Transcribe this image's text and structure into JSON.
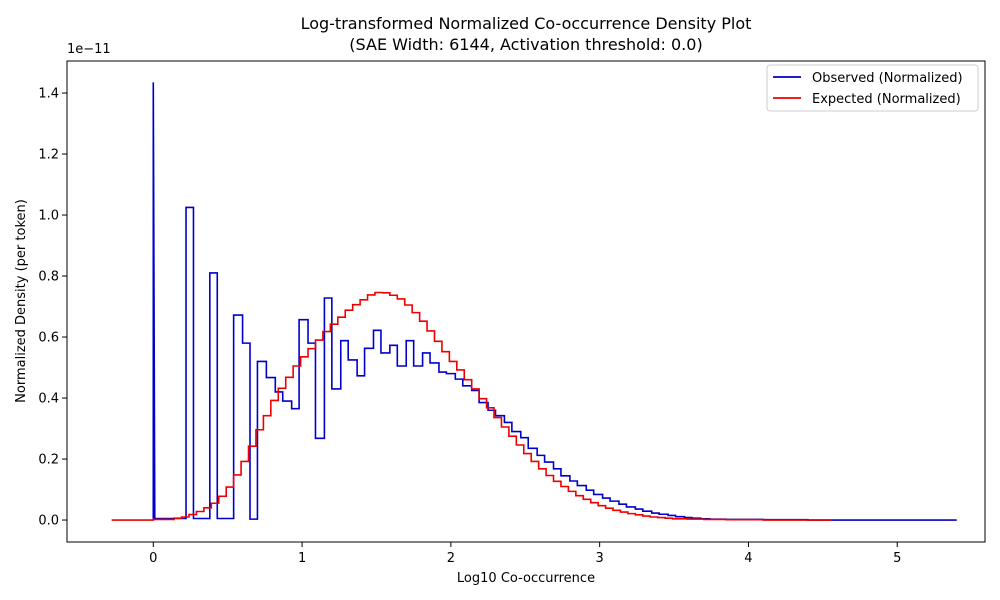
{
  "chart_data": {
    "type": "line",
    "title": "Log-transformed Normalized Co-occurrence Density Plot",
    "subtitle": "(SAE Width: 6144, Activation threshold: 0.0)",
    "xlabel": "Log10 Co-occurrence",
    "ylabel": "Normalized Density (per token)",
    "y_multiplier": "1e−11",
    "xlim": [
      -0.58,
      5.59
    ],
    "ylim": [
      -0.072,
      1.505
    ],
    "xticks": [
      0,
      1,
      2,
      3,
      4,
      5
    ],
    "xtick_labels": [
      "0",
      "1",
      "2",
      "3",
      "4",
      "5"
    ],
    "yticks": [
      0.0,
      0.2,
      0.4,
      0.6,
      0.8,
      1.0,
      1.2,
      1.4
    ],
    "ytick_labels": [
      "0.0",
      "0.2",
      "0.4",
      "0.6",
      "0.8",
      "1.0",
      "1.2",
      "1.4"
    ],
    "grid": false,
    "legend_position": "top-right",
    "drawstyle": "steps",
    "series": [
      {
        "name": "Observed (Normalized)",
        "color": "#0000cc",
        "points": [
          [
            0,
            0
          ],
          [
            0,
            1.435
          ],
          [
            0.01,
            0.005
          ],
          [
            0.22,
            0.005
          ],
          [
            0.22,
            1.025
          ],
          [
            0.27,
            1.025
          ],
          [
            0.27,
            0.005
          ],
          [
            0.38,
            0.005
          ],
          [
            0.38,
            0.81
          ],
          [
            0.43,
            0.81
          ],
          [
            0.43,
            0.005
          ],
          [
            0.54,
            0.005
          ],
          [
            0.54,
            0.672
          ],
          [
            0.6,
            0.672
          ],
          [
            0.6,
            0.58
          ],
          [
            0.65,
            0.58
          ],
          [
            0.65,
            0.003
          ],
          [
            0.7,
            0.003
          ],
          [
            0.7,
            0.52
          ],
          [
            0.76,
            0.52
          ],
          [
            0.76,
            0.467
          ],
          [
            0.82,
            0.467
          ],
          [
            0.82,
            0.42
          ],
          [
            0.87,
            0.42
          ],
          [
            0.87,
            0.39
          ],
          [
            0.93,
            0.39
          ],
          [
            0.93,
            0.365
          ],
          [
            0.98,
            0.365
          ],
          [
            0.98,
            0.657
          ],
          [
            1.04,
            0.657
          ],
          [
            1.04,
            0.58
          ],
          [
            1.09,
            0.58
          ],
          [
            1.09,
            0.268
          ],
          [
            1.15,
            0.268
          ],
          [
            1.15,
            0.728
          ],
          [
            1.2,
            0.728
          ],
          [
            1.2,
            0.43
          ],
          [
            1.26,
            0.43
          ],
          [
            1.26,
            0.588
          ],
          [
            1.31,
            0.588
          ],
          [
            1.31,
            0.525
          ],
          [
            1.37,
            0.525
          ],
          [
            1.37,
            0.473
          ],
          [
            1.42,
            0.473
          ],
          [
            1.42,
            0.563
          ],
          [
            1.48,
            0.563
          ],
          [
            1.48,
            0.622
          ],
          [
            1.53,
            0.622
          ],
          [
            1.53,
            0.548
          ],
          [
            1.59,
            0.548
          ],
          [
            1.59,
            0.573
          ],
          [
            1.64,
            0.573
          ],
          [
            1.64,
            0.505
          ],
          [
            1.7,
            0.505
          ],
          [
            1.7,
            0.588
          ],
          [
            1.75,
            0.588
          ],
          [
            1.75,
            0.505
          ],
          [
            1.81,
            0.505
          ],
          [
            1.81,
            0.548
          ],
          [
            1.86,
            0.548
          ],
          [
            1.86,
            0.515
          ],
          [
            1.92,
            0.515
          ],
          [
            1.92,
            0.485
          ],
          [
            1.97,
            0.485
          ],
          [
            1.97,
            0.48
          ],
          [
            2.03,
            0.48
          ],
          [
            2.03,
            0.462
          ],
          [
            2.08,
            0.462
          ],
          [
            2.08,
            0.44
          ],
          [
            2.14,
            0.44
          ],
          [
            2.14,
            0.425
          ],
          [
            2.19,
            0.425
          ],
          [
            2.19,
            0.385
          ],
          [
            2.25,
            0.385
          ],
          [
            2.25,
            0.36
          ],
          [
            2.3,
            0.36
          ],
          [
            2.3,
            0.342
          ],
          [
            2.36,
            0.342
          ],
          [
            2.36,
            0.32
          ],
          [
            2.41,
            0.32
          ],
          [
            2.41,
            0.29
          ],
          [
            2.47,
            0.29
          ],
          [
            2.47,
            0.27
          ],
          [
            2.52,
            0.27
          ],
          [
            2.52,
            0.235
          ],
          [
            2.58,
            0.235
          ],
          [
            2.58,
            0.212
          ],
          [
            2.63,
            0.212
          ],
          [
            2.63,
            0.19
          ],
          [
            2.69,
            0.19
          ],
          [
            2.69,
            0.168
          ],
          [
            2.74,
            0.168
          ],
          [
            2.74,
            0.145
          ],
          [
            2.8,
            0.145
          ],
          [
            2.8,
            0.128
          ],
          [
            2.85,
            0.128
          ],
          [
            2.85,
            0.113
          ],
          [
            2.91,
            0.113
          ],
          [
            2.91,
            0.098
          ],
          [
            2.96,
            0.098
          ],
          [
            2.96,
            0.084
          ],
          [
            3.02,
            0.084
          ],
          [
            3.02,
            0.072
          ],
          [
            3.07,
            0.072
          ],
          [
            3.07,
            0.062
          ],
          [
            3.13,
            0.062
          ],
          [
            3.13,
            0.052
          ],
          [
            3.18,
            0.052
          ],
          [
            3.18,
            0.043
          ],
          [
            3.24,
            0.043
          ],
          [
            3.24,
            0.036
          ],
          [
            3.29,
            0.036
          ],
          [
            3.29,
            0.029
          ],
          [
            3.35,
            0.029
          ],
          [
            3.35,
            0.023
          ],
          [
            3.4,
            0.023
          ],
          [
            3.4,
            0.019
          ],
          [
            3.46,
            0.019
          ],
          [
            3.46,
            0.015
          ],
          [
            3.51,
            0.015
          ],
          [
            3.51,
            0.011
          ],
          [
            3.57,
            0.011
          ],
          [
            3.57,
            0.008
          ],
          [
            3.62,
            0.008
          ],
          [
            3.62,
            0.006
          ],
          [
            3.68,
            0.006
          ],
          [
            3.68,
            0.004
          ],
          [
            3.74,
            0.004
          ],
          [
            3.74,
            0.003
          ],
          [
            3.85,
            0.003
          ],
          [
            3.85,
            0.002
          ],
          [
            4.1,
            0.002
          ],
          [
            4.1,
            0.001
          ],
          [
            4.4,
            0.001
          ],
          [
            4.4,
            0.0
          ],
          [
            5.4,
            0.0
          ]
        ]
      },
      {
        "name": "Expected (Normalized)",
        "color": "#ee0000",
        "points": [
          [
            -0.28,
            0.0
          ],
          [
            0.0,
            0.0
          ],
          [
            0.0,
            0.002
          ],
          [
            0.14,
            0.002
          ],
          [
            0.14,
            0.006
          ],
          [
            0.19,
            0.006
          ],
          [
            0.19,
            0.01
          ],
          [
            0.24,
            0.01
          ],
          [
            0.24,
            0.018
          ],
          [
            0.29,
            0.018
          ],
          [
            0.29,
            0.028
          ],
          [
            0.34,
            0.028
          ],
          [
            0.34,
            0.04
          ],
          [
            0.39,
            0.04
          ],
          [
            0.39,
            0.055
          ],
          [
            0.44,
            0.055
          ],
          [
            0.44,
            0.078
          ],
          [
            0.49,
            0.078
          ],
          [
            0.49,
            0.108
          ],
          [
            0.54,
            0.108
          ],
          [
            0.54,
            0.148
          ],
          [
            0.59,
            0.148
          ],
          [
            0.59,
            0.192
          ],
          [
            0.64,
            0.192
          ],
          [
            0.64,
            0.242
          ],
          [
            0.69,
            0.242
          ],
          [
            0.69,
            0.296
          ],
          [
            0.74,
            0.296
          ],
          [
            0.74,
            0.342
          ],
          [
            0.79,
            0.342
          ],
          [
            0.79,
            0.392
          ],
          [
            0.84,
            0.392
          ],
          [
            0.84,
            0.432
          ],
          [
            0.89,
            0.432
          ],
          [
            0.89,
            0.468
          ],
          [
            0.94,
            0.468
          ],
          [
            0.94,
            0.505
          ],
          [
            0.99,
            0.505
          ],
          [
            0.99,
            0.535
          ],
          [
            1.04,
            0.535
          ],
          [
            1.04,
            0.562
          ],
          [
            1.09,
            0.562
          ],
          [
            1.09,
            0.59
          ],
          [
            1.14,
            0.59
          ],
          [
            1.14,
            0.618
          ],
          [
            1.19,
            0.618
          ],
          [
            1.19,
            0.642
          ],
          [
            1.24,
            0.642
          ],
          [
            1.24,
            0.665
          ],
          [
            1.29,
            0.665
          ],
          [
            1.29,
            0.688
          ],
          [
            1.34,
            0.688
          ],
          [
            1.34,
            0.706
          ],
          [
            1.39,
            0.706
          ],
          [
            1.39,
            0.722
          ],
          [
            1.44,
            0.722
          ],
          [
            1.44,
            0.738
          ],
          [
            1.49,
            0.738
          ],
          [
            1.49,
            0.746
          ],
          [
            1.54,
            0.746
          ],
          [
            1.54,
            0.745
          ],
          [
            1.59,
            0.745
          ],
          [
            1.59,
            0.737
          ],
          [
            1.64,
            0.737
          ],
          [
            1.64,
            0.725
          ],
          [
            1.69,
            0.725
          ],
          [
            1.69,
            0.705
          ],
          [
            1.74,
            0.705
          ],
          [
            1.74,
            0.68
          ],
          [
            1.79,
            0.68
          ],
          [
            1.79,
            0.652
          ],
          [
            1.84,
            0.652
          ],
          [
            1.84,
            0.62
          ],
          [
            1.89,
            0.62
          ],
          [
            1.89,
            0.586
          ],
          [
            1.94,
            0.586
          ],
          [
            1.94,
            0.552
          ],
          [
            1.99,
            0.552
          ],
          [
            1.99,
            0.52
          ],
          [
            2.04,
            0.52
          ],
          [
            2.04,
            0.492
          ],
          [
            2.09,
            0.492
          ],
          [
            2.09,
            0.46
          ],
          [
            2.14,
            0.46
          ],
          [
            2.14,
            0.43
          ],
          [
            2.19,
            0.43
          ],
          [
            2.19,
            0.398
          ],
          [
            2.24,
            0.398
          ],
          [
            2.24,
            0.368
          ],
          [
            2.29,
            0.368
          ],
          [
            2.29,
            0.336
          ],
          [
            2.34,
            0.336
          ],
          [
            2.34,
            0.305
          ],
          [
            2.39,
            0.305
          ],
          [
            2.39,
            0.275
          ],
          [
            2.44,
            0.275
          ],
          [
            2.44,
            0.246
          ],
          [
            2.49,
            0.246
          ],
          [
            2.49,
            0.218
          ],
          [
            2.54,
            0.218
          ],
          [
            2.54,
            0.192
          ],
          [
            2.59,
            0.192
          ],
          [
            2.59,
            0.168
          ],
          [
            2.64,
            0.168
          ],
          [
            2.64,
            0.146
          ],
          [
            2.69,
            0.146
          ],
          [
            2.69,
            0.127
          ],
          [
            2.74,
            0.127
          ],
          [
            2.74,
            0.11
          ],
          [
            2.79,
            0.11
          ],
          [
            2.79,
            0.094
          ],
          [
            2.84,
            0.094
          ],
          [
            2.84,
            0.08
          ],
          [
            2.89,
            0.08
          ],
          [
            2.89,
            0.068
          ],
          [
            2.94,
            0.068
          ],
          [
            2.94,
            0.057
          ],
          [
            2.99,
            0.057
          ],
          [
            2.99,
            0.047
          ],
          [
            3.04,
            0.047
          ],
          [
            3.04,
            0.039
          ],
          [
            3.09,
            0.039
          ],
          [
            3.09,
            0.032
          ],
          [
            3.14,
            0.032
          ],
          [
            3.14,
            0.026
          ],
          [
            3.19,
            0.026
          ],
          [
            3.19,
            0.021
          ],
          [
            3.24,
            0.021
          ],
          [
            3.24,
            0.017
          ],
          [
            3.29,
            0.017
          ],
          [
            3.29,
            0.013
          ],
          [
            3.34,
            0.013
          ],
          [
            3.34,
            0.01
          ],
          [
            3.39,
            0.01
          ],
          [
            3.39,
            0.008
          ],
          [
            3.44,
            0.008
          ],
          [
            3.44,
            0.006
          ],
          [
            3.49,
            0.006
          ],
          [
            3.49,
            0.004
          ],
          [
            3.59,
            0.004
          ],
          [
            3.59,
            0.003
          ],
          [
            3.7,
            0.003
          ],
          [
            3.7,
            0.002
          ],
          [
            3.85,
            0.002
          ],
          [
            3.85,
            0.001
          ],
          [
            4.1,
            0.001
          ],
          [
            4.1,
            0.0
          ],
          [
            4.56,
            0.0
          ]
        ]
      }
    ]
  }
}
